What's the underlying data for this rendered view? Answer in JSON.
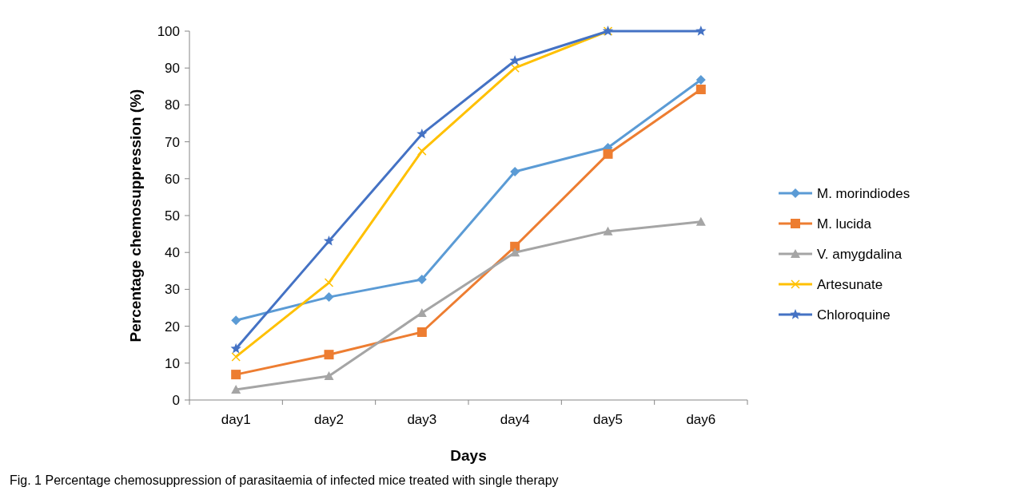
{
  "chart_data": {
    "type": "line",
    "xlabel": "Days",
    "ylabel": "Percentage chemosuppression (%)",
    "categories": [
      "day1",
      "day2",
      "day3",
      "day4",
      "day5",
      "day6"
    ],
    "ylim": [
      0,
      100
    ],
    "yticks": [
      0,
      10,
      20,
      30,
      40,
      50,
      60,
      70,
      80,
      90,
      100
    ],
    "grid": false,
    "legend": "right",
    "line_style": "solid",
    "series": [
      {
        "name": "M. morindiodes",
        "color": "#5b9bd5",
        "marker": "diamond",
        "values": [
          21.6,
          27.9,
          32.7,
          61.9,
          68.4,
          86.8
        ]
      },
      {
        "name": "M. lucida",
        "color": "#ed7d31",
        "marker": "square",
        "values": [
          6.9,
          12.3,
          18.4,
          41.6,
          66.7,
          84.2
        ]
      },
      {
        "name": "V. amygdalina",
        "color": "#a5a5a5",
        "marker": "triangle",
        "values": [
          2.8,
          6.5,
          23.6,
          40,
          45.7,
          48.3
        ]
      },
      {
        "name": "Artesunate",
        "color": "#ffc000",
        "marker": "cross",
        "values": [
          11.7,
          31.8,
          67.5,
          90,
          100,
          null
        ]
      },
      {
        "name": "Chloroquine",
        "color": "#4472c4",
        "marker": "star",
        "values": [
          13.9,
          43.1,
          72.1,
          92,
          100,
          100
        ]
      }
    ],
    "annotations": [
      "Fig. 1  Percentage chemosuppression of parasitaemia of infected mice treated with single therapy"
    ]
  }
}
